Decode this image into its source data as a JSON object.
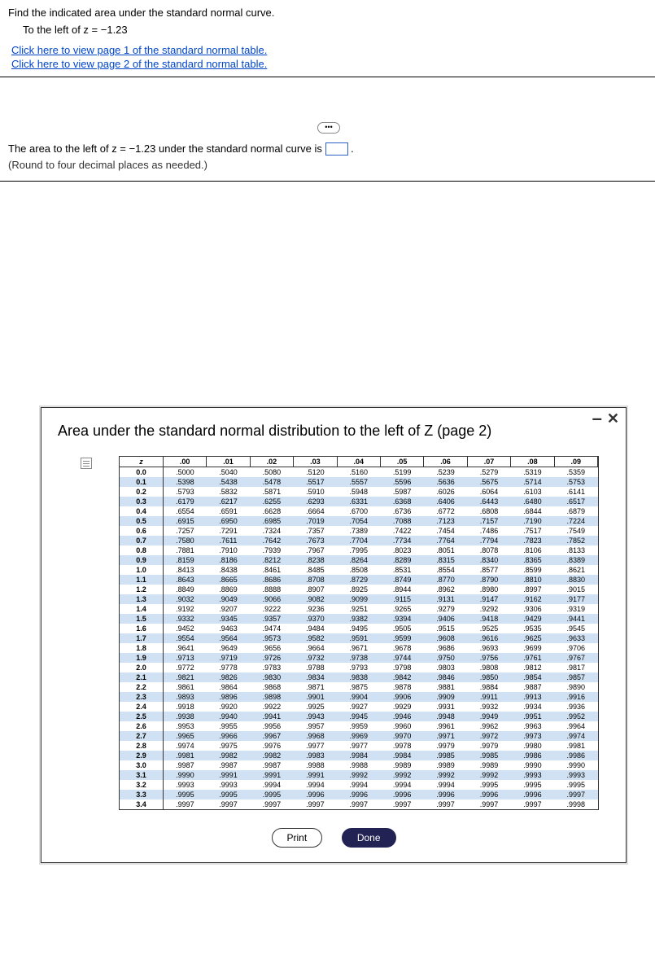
{
  "question": {
    "line1": "Find the indicated area under the standard normal curve.",
    "line2": "To the left of z = −1.23",
    "link1": "Click here to view page 1 of the standard normal table.",
    "link2": "Click here to view page 2 of the standard normal table."
  },
  "answer": {
    "prefix": "The area to the left of z = −1.23 under the standard normal curve is ",
    "round": "(Round to four decimal places as needed.)"
  },
  "modal": {
    "title": "Area under the standard normal distribution to the left of Z (page 2)",
    "headers": [
      "z",
      ".00",
      ".01",
      ".02",
      ".03",
      ".04",
      ".05",
      ".06",
      ".07",
      ".08",
      ".09"
    ],
    "rows": [
      {
        "z": "0.0",
        "vals": [
          ".5000",
          ".5040",
          ".5080",
          ".5120",
          ".5160",
          ".5199",
          ".5239",
          ".5279",
          ".5319",
          ".5359"
        ]
      },
      {
        "z": "0.1",
        "vals": [
          ".5398",
          ".5438",
          ".5478",
          ".5517",
          ".5557",
          ".5596",
          ".5636",
          ".5675",
          ".5714",
          ".5753"
        ],
        "shade": true
      },
      {
        "z": "0.2",
        "vals": [
          ".5793",
          ".5832",
          ".5871",
          ".5910",
          ".5948",
          ".5987",
          ".6026",
          ".6064",
          ".6103",
          ".6141"
        ]
      },
      {
        "z": "0.3",
        "vals": [
          ".6179",
          ".6217",
          ".6255",
          ".6293",
          ".6331",
          ".6368",
          ".6406",
          ".6443",
          ".6480",
          ".6517"
        ],
        "shade": true
      },
      {
        "z": "0.4",
        "vals": [
          ".6554",
          ".6591",
          ".6628",
          ".6664",
          ".6700",
          ".6736",
          ".6772",
          ".6808",
          ".6844",
          ".6879"
        ]
      },
      {
        "z": "0.5",
        "vals": [
          ".6915",
          ".6950",
          ".6985",
          ".7019",
          ".7054",
          ".7088",
          ".7123",
          ".7157",
          ".7190",
          ".7224"
        ],
        "shade": true
      },
      {
        "z": "0.6",
        "vals": [
          ".7257",
          ".7291",
          ".7324",
          ".7357",
          ".7389",
          ".7422",
          ".7454",
          ".7486",
          ".7517",
          ".7549"
        ]
      },
      {
        "z": "0.7",
        "vals": [
          ".7580",
          ".7611",
          ".7642",
          ".7673",
          ".7704",
          ".7734",
          ".7764",
          ".7794",
          ".7823",
          ".7852"
        ],
        "shade": true
      },
      {
        "z": "0.8",
        "vals": [
          ".7881",
          ".7910",
          ".7939",
          ".7967",
          ".7995",
          ".8023",
          ".8051",
          ".8078",
          ".8106",
          ".8133"
        ]
      },
      {
        "z": "0.9",
        "vals": [
          ".8159",
          ".8186",
          ".8212",
          ".8238",
          ".8264",
          ".8289",
          ".8315",
          ".8340",
          ".8365",
          ".8389"
        ],
        "shade": true
      },
      {
        "z": "1.0",
        "vals": [
          ".8413",
          ".8438",
          ".8461",
          ".8485",
          ".8508",
          ".8531",
          ".8554",
          ".8577",
          ".8599",
          ".8621"
        ]
      },
      {
        "z": "1.1",
        "vals": [
          ".8643",
          ".8665",
          ".8686",
          ".8708",
          ".8729",
          ".8749",
          ".8770",
          ".8790",
          ".8810",
          ".8830"
        ],
        "shade": true
      },
      {
        "z": "1.2",
        "vals": [
          ".8849",
          ".8869",
          ".8888",
          ".8907",
          ".8925",
          ".8944",
          ".8962",
          ".8980",
          ".8997",
          ".9015"
        ]
      },
      {
        "z": "1.3",
        "vals": [
          ".9032",
          ".9049",
          ".9066",
          ".9082",
          ".9099",
          ".9115",
          ".9131",
          ".9147",
          ".9162",
          ".9177"
        ],
        "shade": true
      },
      {
        "z": "1.4",
        "vals": [
          ".9192",
          ".9207",
          ".9222",
          ".9236",
          ".9251",
          ".9265",
          ".9279",
          ".9292",
          ".9306",
          ".9319"
        ]
      },
      {
        "z": "1.5",
        "vals": [
          ".9332",
          ".9345",
          ".9357",
          ".9370",
          ".9382",
          ".9394",
          ".9406",
          ".9418",
          ".9429",
          ".9441"
        ],
        "shade": true
      },
      {
        "z": "1.6",
        "vals": [
          ".9452",
          ".9463",
          ".9474",
          ".9484",
          ".9495",
          ".9505",
          ".9515",
          ".9525",
          ".9535",
          ".9545"
        ]
      },
      {
        "z": "1.7",
        "vals": [
          ".9554",
          ".9564",
          ".9573",
          ".9582",
          ".9591",
          ".9599",
          ".9608",
          ".9616",
          ".9625",
          ".9633"
        ],
        "shade": true
      },
      {
        "z": "1.8",
        "vals": [
          ".9641",
          ".9649",
          ".9656",
          ".9664",
          ".9671",
          ".9678",
          ".9686",
          ".9693",
          ".9699",
          ".9706"
        ]
      },
      {
        "z": "1.9",
        "vals": [
          ".9713",
          ".9719",
          ".9726",
          ".9732",
          ".9738",
          ".9744",
          ".9750",
          ".9756",
          ".9761",
          ".9767"
        ],
        "shade": true
      },
      {
        "z": "2.0",
        "vals": [
          ".9772",
          ".9778",
          ".9783",
          ".9788",
          ".9793",
          ".9798",
          ".9803",
          ".9808",
          ".9812",
          ".9817"
        ]
      },
      {
        "z": "2.1",
        "vals": [
          ".9821",
          ".9826",
          ".9830",
          ".9834",
          ".9838",
          ".9842",
          ".9846",
          ".9850",
          ".9854",
          ".9857"
        ],
        "shade": true
      },
      {
        "z": "2.2",
        "vals": [
          ".9861",
          ".9864",
          ".9868",
          ".9871",
          ".9875",
          ".9878",
          ".9881",
          ".9884",
          ".9887",
          ".9890"
        ]
      },
      {
        "z": "2.3",
        "vals": [
          ".9893",
          ".9896",
          ".9898",
          ".9901",
          ".9904",
          ".9906",
          ".9909",
          ".9911",
          ".9913",
          ".9916"
        ],
        "shade": true
      },
      {
        "z": "2.4",
        "vals": [
          ".9918",
          ".9920",
          ".9922",
          ".9925",
          ".9927",
          ".9929",
          ".9931",
          ".9932",
          ".9934",
          ".9936"
        ]
      },
      {
        "z": "2.5",
        "vals": [
          ".9938",
          ".9940",
          ".9941",
          ".9943",
          ".9945",
          ".9946",
          ".9948",
          ".9949",
          ".9951",
          ".9952"
        ],
        "shade": true
      },
      {
        "z": "2.6",
        "vals": [
          ".9953",
          ".9955",
          ".9956",
          ".9957",
          ".9959",
          ".9960",
          ".9961",
          ".9962",
          ".9963",
          ".9964"
        ]
      },
      {
        "z": "2.7",
        "vals": [
          ".9965",
          ".9966",
          ".9967",
          ".9968",
          ".9969",
          ".9970",
          ".9971",
          ".9972",
          ".9973",
          ".9974"
        ],
        "shade": true
      },
      {
        "z": "2.8",
        "vals": [
          ".9974",
          ".9975",
          ".9976",
          ".9977",
          ".9977",
          ".9978",
          ".9979",
          ".9979",
          ".9980",
          ".9981"
        ]
      },
      {
        "z": "2.9",
        "vals": [
          ".9981",
          ".9982",
          ".9982",
          ".9983",
          ".9984",
          ".9984",
          ".9985",
          ".9985",
          ".9986",
          ".9986"
        ],
        "shade": true
      },
      {
        "z": "3.0",
        "vals": [
          ".9987",
          ".9987",
          ".9987",
          ".9988",
          ".9988",
          ".9989",
          ".9989",
          ".9989",
          ".9990",
          ".9990"
        ]
      },
      {
        "z": "3.1",
        "vals": [
          ".9990",
          ".9991",
          ".9991",
          ".9991",
          ".9992",
          ".9992",
          ".9992",
          ".9992",
          ".9993",
          ".9993"
        ],
        "shade": true
      },
      {
        "z": "3.2",
        "vals": [
          ".9993",
          ".9993",
          ".9994",
          ".9994",
          ".9994",
          ".9994",
          ".9994",
          ".9995",
          ".9995",
          ".9995"
        ]
      },
      {
        "z": "3.3",
        "vals": [
          ".9995",
          ".9995",
          ".9995",
          ".9996",
          ".9996",
          ".9996",
          ".9996",
          ".9996",
          ".9996",
          ".9997"
        ],
        "shade": true
      },
      {
        "z": "3.4",
        "vals": [
          ".9997",
          ".9997",
          ".9997",
          ".9997",
          ".9997",
          ".9997",
          ".9997",
          ".9997",
          ".9997",
          ".9998"
        ]
      }
    ],
    "print": "Print",
    "done": "Done"
  }
}
